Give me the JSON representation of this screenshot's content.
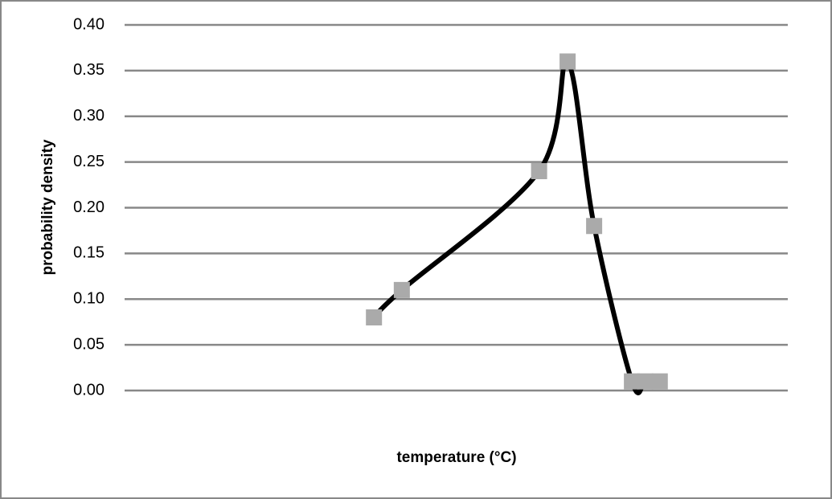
{
  "chart_data": {
    "type": "line",
    "smooth": true,
    "x_label": "temperature (°C)",
    "y_label": "probability density",
    "x": [
      37.6,
      41.8,
      62.5,
      66.8,
      70.8,
      76.5,
      78.5,
      80.7
    ],
    "series": [
      {
        "color": "#000000",
        "marker_color": "#aaaaaa",
        "values": [
          0.08,
          0.11,
          0.24,
          0.36,
          0.18,
          0.01,
          0.01,
          0.01
        ]
      }
    ],
    "xlim": [
      0,
      100
    ],
    "ylim": [
      0,
      0.4
    ],
    "yticks": [
      {
        "value": 0,
        "label": "0.00"
      },
      0.05,
      {
        "value": 0.1,
        "label": "0.10"
      },
      0.15,
      {
        "value": 0.2,
        "label": "0.20"
      },
      0.25,
      {
        "value": 0.3,
        "label": "0.30"
      },
      0.35,
      {
        "value": 0.4,
        "label": "0.40"
      }
    ],
    "grid": true
  }
}
